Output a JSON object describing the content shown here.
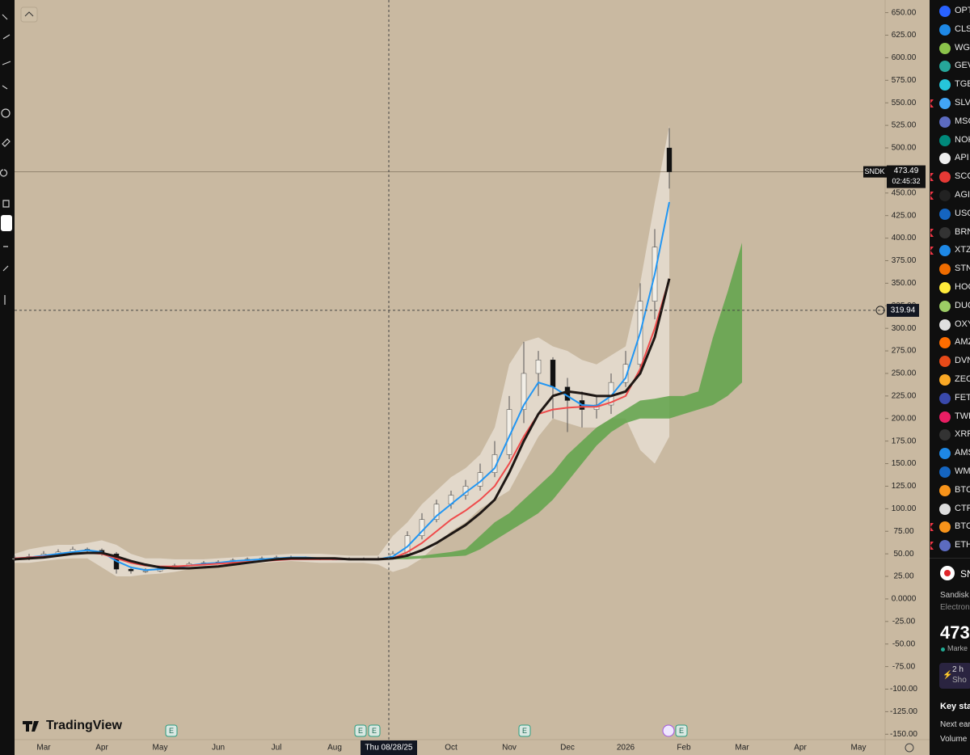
{
  "chart_data": {
    "type": "candlestick",
    "categories": [
      null,
      null,
      "Mar",
      null,
      null,
      null,
      "Apr",
      null,
      null,
      null,
      "May",
      null,
      null,
      null,
      "Jun",
      null,
      null,
      null,
      "Jul",
      null,
      null,
      null,
      "Aug",
      null,
      null,
      null,
      null,
      null,
      null,
      null,
      "Oct",
      null,
      null,
      null,
      "Nov",
      null,
      null,
      null,
      "Dec",
      null,
      null,
      null,
      "2026",
      null,
      null,
      null,
      "Feb",
      null,
      null,
      null,
      "Mar",
      null,
      null,
      null,
      "Apr",
      null,
      null,
      null,
      "May"
    ],
    "ohlc": {
      "open": [
        44,
        45,
        47,
        50,
        52,
        55,
        54,
        50,
        33,
        31,
        31,
        34,
        37,
        39,
        40,
        41,
        43,
        44,
        45,
        46,
        46,
        45,
        44,
        44,
        44,
        44,
        45,
        50,
        70,
        88,
        105,
        115,
        125,
        140,
        160,
        210,
        250,
        265,
        235,
        220,
        210,
        215,
        240,
        260,
        330,
        500,
        null,
        null,
        null,
        null,
        null,
        null,
        null,
        null,
        null,
        null,
        null,
        null,
        null
      ],
      "high": [
        48,
        50,
        53,
        55,
        58,
        57,
        56,
        52,
        36,
        34,
        36,
        39,
        41,
        42,
        43,
        45,
        46,
        47,
        48,
        48,
        47,
        46,
        46,
        46,
        46,
        47,
        53,
        75,
        95,
        110,
        120,
        132,
        150,
        175,
        225,
        285,
        275,
        268,
        245,
        230,
        225,
        250,
        275,
        350,
        410,
        522,
        null,
        null,
        null,
        null,
        null,
        null,
        null,
        null,
        null,
        null,
        null,
        null,
        null
      ],
      "low": [
        42,
        43,
        45,
        48,
        50,
        51,
        48,
        28,
        28,
        29,
        30,
        33,
        36,
        38,
        39,
        40,
        42,
        43,
        44,
        44,
        44,
        43,
        43,
        43,
        43,
        43,
        44,
        48,
        66,
        85,
        100,
        110,
        120,
        135,
        155,
        195,
        225,
        200,
        185,
        190,
        200,
        205,
        235,
        250,
        310,
        455,
        null,
        null,
        null,
        null,
        null,
        null,
        null,
        null,
        null,
        null,
        null,
        null,
        null
      ],
      "close": [
        45,
        47,
        50,
        52,
        55,
        54,
        50,
        33,
        31,
        31,
        34,
        37,
        39,
        40,
        41,
        43,
        44,
        45,
        46,
        46,
        45,
        44,
        44,
        44,
        44,
        45,
        50,
        70,
        88,
        105,
        115,
        125,
        140,
        160,
        210,
        250,
        265,
        235,
        220,
        210,
        215,
        240,
        260,
        330,
        390,
        473.49,
        null,
        null,
        null,
        null,
        null,
        null,
        null,
        null,
        null,
        null,
        null,
        null,
        null
      ],
      "up_color": "#f2eee6",
      "down_color": "#111111",
      "wick_color": "#555555"
    },
    "lines": [
      {
        "color": "#2196f3",
        "width": 2,
        "values": [
          45,
          46,
          48,
          50,
          52,
          54,
          52,
          42,
          35,
          32,
          33,
          35,
          37,
          39,
          40,
          42,
          43,
          44,
          45,
          46,
          46,
          45,
          44,
          44,
          44,
          44,
          47,
          58,
          75,
          92,
          105,
          118,
          130,
          145,
          180,
          215,
          240,
          235,
          225,
          215,
          214,
          225,
          245,
          295,
          360,
          440,
          null,
          null,
          null,
          null,
          null,
          null,
          null,
          null,
          null,
          null,
          null,
          null,
          null
        ]
      },
      {
        "color": "#ef4b4b",
        "width": 2,
        "values": [
          45,
          46,
          47,
          48,
          50,
          51,
          50,
          45,
          40,
          37,
          36,
          36,
          37,
          38,
          39,
          40,
          41,
          42,
          43,
          44,
          44,
          44,
          44,
          44,
          44,
          44,
          45,
          52,
          62,
          75,
          88,
          98,
          110,
          125,
          150,
          180,
          205,
          210,
          212,
          213,
          213,
          218,
          225,
          255,
          300,
          355,
          null,
          null,
          null,
          null,
          null,
          null,
          null,
          null,
          null,
          null,
          null,
          null,
          null
        ]
      },
      {
        "color": "#1e1714",
        "width": 3,
        "values": [
          44,
          45,
          46,
          48,
          50,
          51,
          51,
          47,
          42,
          38,
          35,
          34,
          34,
          35,
          36,
          38,
          40,
          42,
          44,
          45,
          45,
          45,
          45,
          44,
          44,
          44,
          45,
          48,
          54,
          62,
          72,
          82,
          95,
          110,
          140,
          175,
          205,
          225,
          230,
          228,
          225,
          225,
          230,
          250,
          290,
          355,
          null,
          null,
          null,
          null,
          null,
          null,
          null,
          null,
          null,
          null,
          null,
          null,
          null
        ]
      }
    ],
    "bands": [
      {
        "color": "#ece6dc",
        "upper": [
          50,
          55,
          58,
          60,
          60,
          62,
          65,
          60,
          50,
          45,
          45,
          44,
          44,
          44,
          45,
          46,
          47,
          48,
          49,
          50,
          50,
          50,
          49,
          48,
          48,
          48,
          70,
          85,
          105,
          120,
          135,
          145,
          160,
          190,
          260,
          285,
          290,
          280,
          275,
          265,
          260,
          270,
          280,
          350,
          440,
          525,
          null,
          null,
          null,
          null,
          null,
          null,
          null,
          null,
          null,
          null,
          null,
          null,
          null
        ],
        "lower": [
          40,
          40,
          42,
          44,
          45,
          45,
          35,
          25,
          25,
          27,
          28,
          30,
          33,
          34,
          35,
          37,
          38,
          40,
          41,
          42,
          41,
          40,
          40,
          40,
          40,
          38,
          30,
          35,
          45,
          60,
          75,
          85,
          100,
          110,
          120,
          150,
          180,
          200,
          195,
          190,
          190,
          200,
          200,
          165,
          150,
          180,
          null,
          null,
          null,
          null,
          null,
          null,
          null,
          null,
          null,
          null,
          null,
          null,
          null
        ]
      },
      {
        "color": "#5fa34a",
        "upper": [
          null,
          null,
          null,
          null,
          null,
          null,
          null,
          null,
          null,
          null,
          null,
          null,
          null,
          null,
          null,
          null,
          null,
          null,
          null,
          null,
          null,
          null,
          45,
          44,
          44,
          45,
          46,
          47,
          48,
          50,
          52,
          55,
          70,
          85,
          95,
          110,
          125,
          140,
          160,
          175,
          190,
          200,
          210,
          220,
          222,
          225,
          225,
          230,
          290,
          340,
          395,
          null,
          null,
          null,
          null,
          null,
          null,
          null,
          null
        ],
        "lower": [
          null,
          null,
          null,
          null,
          null,
          null,
          null,
          null,
          null,
          null,
          null,
          null,
          null,
          null,
          null,
          null,
          null,
          null,
          null,
          null,
          null,
          null,
          43,
          43,
          43,
          43,
          44,
          44,
          45,
          46,
          47,
          48,
          55,
          65,
          75,
          85,
          95,
          110,
          130,
          150,
          170,
          185,
          195,
          200,
          200,
          200,
          205,
          210,
          215,
          225,
          240,
          null,
          null,
          null,
          null,
          null,
          null,
          null,
          null
        ]
      }
    ],
    "ylim": [
      -156,
      664
    ],
    "yticks": [
      {
        "value": 650,
        "label": "650.00"
      },
      {
        "value": 625,
        "label": "625.00"
      },
      {
        "value": 600,
        "label": "600.00"
      },
      {
        "value": 575,
        "label": "575.00"
      },
      {
        "value": 550,
        "label": "550.00"
      },
      {
        "value": 525,
        "label": "525.00"
      },
      {
        "value": 500,
        "label": "500.00"
      },
      {
        "value": 475,
        "label": "475.00"
      },
      {
        "value": 450,
        "label": "450.00"
      },
      {
        "value": 425,
        "label": "425.00"
      },
      {
        "value": 400,
        "label": "400.00"
      },
      {
        "value": 375,
        "label": "375.00"
      },
      {
        "value": 350,
        "label": "350.00"
      },
      {
        "value": 325,
        "label": "325.00"
      },
      {
        "value": 300,
        "label": "300.00"
      },
      {
        "value": 275,
        "label": "275.00"
      },
      {
        "value": 250,
        "label": "250.00"
      },
      {
        "value": 225,
        "label": "225.00"
      },
      {
        "value": 200,
        "label": "200.00"
      },
      {
        "value": 175,
        "label": "175.00"
      },
      {
        "value": 150,
        "label": "150.00"
      },
      {
        "value": 125,
        "label": "125.00"
      },
      {
        "value": 100,
        "label": "100.00"
      },
      {
        "value": 75,
        "label": "75.00"
      },
      {
        "value": 50,
        "label": "50.00"
      },
      {
        "value": 25,
        "label": "25.00"
      },
      {
        "value": 0,
        "label": "0.0000"
      },
      {
        "value": -25,
        "label": "-25.00"
      },
      {
        "value": -50,
        "label": "-50.00"
      },
      {
        "value": -75,
        "label": "-75.00"
      },
      {
        "value": -100,
        "label": "-100.00"
      },
      {
        "value": -125,
        "label": "-125.00"
      },
      {
        "value": -150,
        "label": "-150.00"
      }
    ],
    "symbol": "SNDK",
    "countdown": "02:45:32",
    "crosshair": {
      "x_label": "Thu 08/28/25",
      "price": {
        "value": 319.94,
        "label": "319.94"
      }
    },
    "brand": "TradingView",
    "event_marker": "E"
  },
  "watchlist": [
    {
      "symbol": "OPT",
      "flag": false
    },
    {
      "symbol": "CLS",
      "flag": false
    },
    {
      "symbol": "WG",
      "flag": false
    },
    {
      "symbol": "GEV",
      "flag": false
    },
    {
      "symbol": "TGE",
      "flag": false
    },
    {
      "symbol": "SLV",
      "flag": true
    },
    {
      "symbol": "MSC",
      "flag": false
    },
    {
      "symbol": "NOK",
      "flag": false
    },
    {
      "symbol": "API",
      "flag": false
    },
    {
      "symbol": "SCC",
      "flag": true
    },
    {
      "symbol": "AGI",
      "flag": true
    },
    {
      "symbol": "USO",
      "flag": false
    },
    {
      "symbol": "BRN",
      "flag": true
    },
    {
      "symbol": "XTZ",
      "flag": true
    },
    {
      "symbol": "STN",
      "flag": false
    },
    {
      "symbol": "HOO",
      "flag": false
    },
    {
      "symbol": "DUC",
      "flag": false
    },
    {
      "symbol": "OXY",
      "flag": false
    },
    {
      "symbol": "AMZ",
      "flag": false
    },
    {
      "symbol": "DVN",
      "flag": false
    },
    {
      "symbol": "ZEC",
      "flag": false
    },
    {
      "symbol": "FET",
      "flag": false
    },
    {
      "symbol": "TWL",
      "flag": false
    },
    {
      "symbol": "XRP",
      "flag": false
    },
    {
      "symbol": "AMS",
      "flag": false
    },
    {
      "symbol": "WML",
      "flag": false
    },
    {
      "symbol": "BTC",
      "flag": false
    },
    {
      "symbol": "CTR",
      "flag": false
    },
    {
      "symbol": "BTC",
      "flag": true
    },
    {
      "symbol": "ETH",
      "flag": true
    }
  ],
  "details": {
    "symbol": "SN",
    "name": "Sandisk C",
    "sector": "Electroni",
    "price": "473",
    "status": "Marke",
    "notice": [
      "2 h",
      "Sho"
    ],
    "key_stats": "Key stat",
    "next_earnings": "Next ear",
    "volume": "Volume"
  }
}
